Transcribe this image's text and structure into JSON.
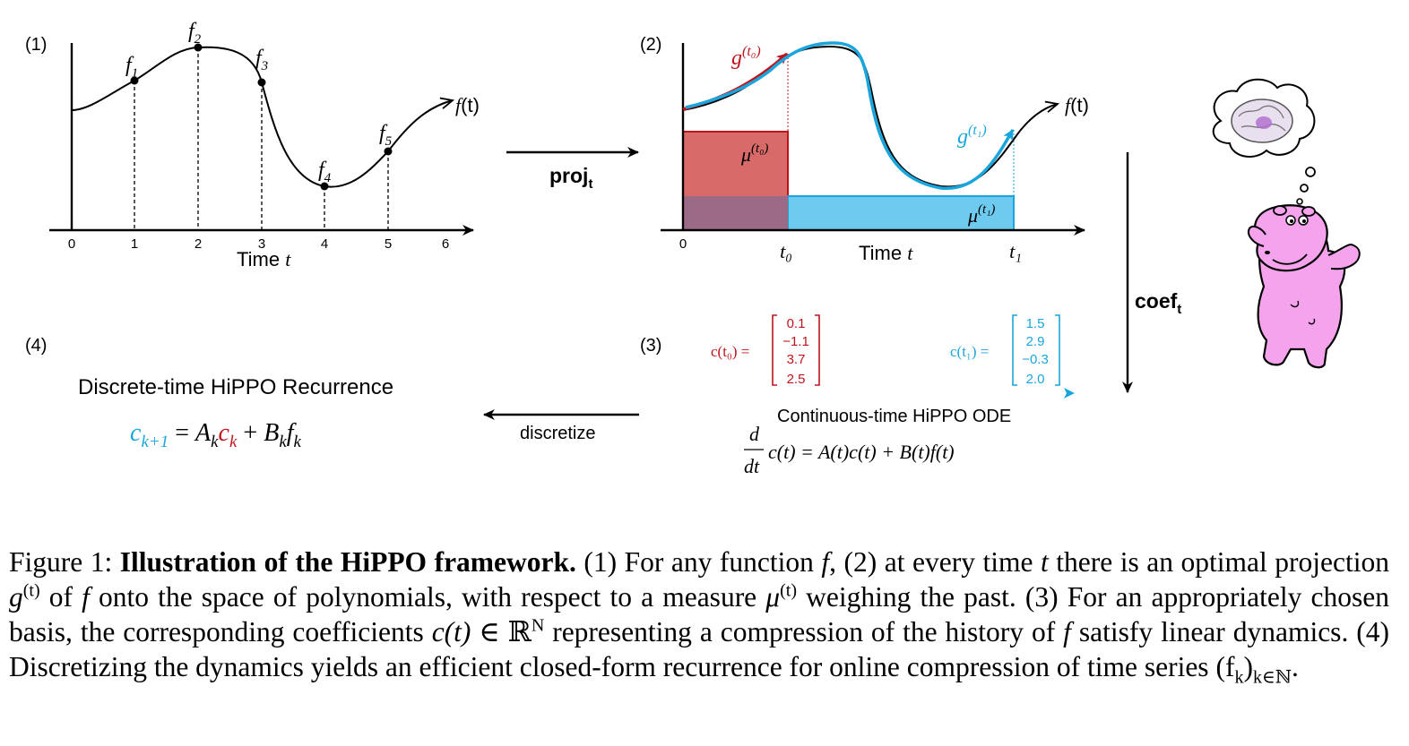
{
  "panel1": {
    "label": "(1)",
    "points": [
      {
        "name": "f",
        "sub": "1"
      },
      {
        "name": "f",
        "sub": "2"
      },
      {
        "name": "f",
        "sub": "3"
      },
      {
        "name": "f",
        "sub": "4"
      },
      {
        "name": "f",
        "sub": "5"
      }
    ],
    "ticks": [
      "0",
      "1",
      "2",
      "3",
      "4",
      "5",
      "6"
    ],
    "xlabel": "Time ",
    "xlabel_var": "t",
    "curve_label": "f",
    "curve_label_arg": "(t)"
  },
  "panel2": {
    "label": "(2)",
    "g_t0": {
      "base": "g",
      "sup": "(t₀)"
    },
    "g_t1": {
      "base": "g",
      "sup": "(t₁)"
    },
    "mu_t0": {
      "base": "μ",
      "sup": "(t₀)"
    },
    "mu_t1": {
      "base": "μ",
      "sup": "(t₁)"
    },
    "tick0": "0",
    "t0": "t₀",
    "t1": "t₁",
    "xlabel": "Time ",
    "xlabel_var": "t",
    "curve_label": "f",
    "curve_label_arg": "(t)"
  },
  "panel3": {
    "label": "(3)",
    "c_t0_label": "c(t₀) =",
    "c_t0": [
      "0.1",
      "−1.1",
      "3.7",
      "2.5"
    ],
    "c_t1_label": "c(t₁) =",
    "c_t1": [
      "1.5",
      "2.9",
      "−0.3",
      "2.0"
    ],
    "ode_title": "Continuous-time HiPPO ODE",
    "ode_d": "d",
    "ode_dt": "dt",
    "ode_rhs": "c(t) = A(t)c(t) + B(t)f(t)"
  },
  "panel4": {
    "label": "(4)",
    "title": "Discrete-time HiPPO Recurrence",
    "lhs_c": "c",
    "lhs_sub": "k+1",
    "eq": " = ",
    "A": "A",
    "A_sub": "k",
    "c": "c",
    "c_sub": "k",
    "plus": " + ",
    "B": "B",
    "B_sub": "k",
    "f": "f",
    "f_sub": "k"
  },
  "arrows": {
    "proj": "proj",
    "proj_sub": "t",
    "coef": "coef",
    "coef_sub": "t",
    "discretize": "discretize"
  },
  "caption": {
    "fig_label": "Figure 1: ",
    "bold_title": "Illustration of the HiPPO framework.",
    "s1": " (1) For any function ",
    "f1": "f",
    "s2": ", (2) at every time ",
    "t1": "t",
    "s3": " there is an optimal projection ",
    "g": "g",
    "g_sup": "(t)",
    "s4": " of ",
    "f2": "f",
    "s5": " onto the space of polynomials, with respect to a measure ",
    "mu": "μ",
    "mu_sup": "(t)",
    "s6": " weighing the past. (3) For an appropriately chosen basis, the corresponding coefficients ",
    "ct": "c(t)",
    "in": " ∈ ",
    "RN": "ℝ",
    "RN_sup": "N",
    "s7": " representing a compression of the history of ",
    "f3": "f",
    "s8": " satisfy linear dynamics. (4) Discretizing the dynamics yields an efficient closed-form recurrence for online compression of time series ",
    "fk": "(f",
    "fk_sub_k": "k",
    "fk_close": ")",
    "fk_sub": "k∈ℕ",
    "end": "."
  },
  "colors": {
    "red": "#c0141c",
    "red_fill": "#d96a6a",
    "blue": "#1aa6dc",
    "blue_fill": "#6fcaf0",
    "overlap_fill": "#9b6a86",
    "hippo_pink": "#f4a3ec"
  },
  "icons": [
    "hippo-mascot-icon",
    "brain-thought-icon"
  ]
}
